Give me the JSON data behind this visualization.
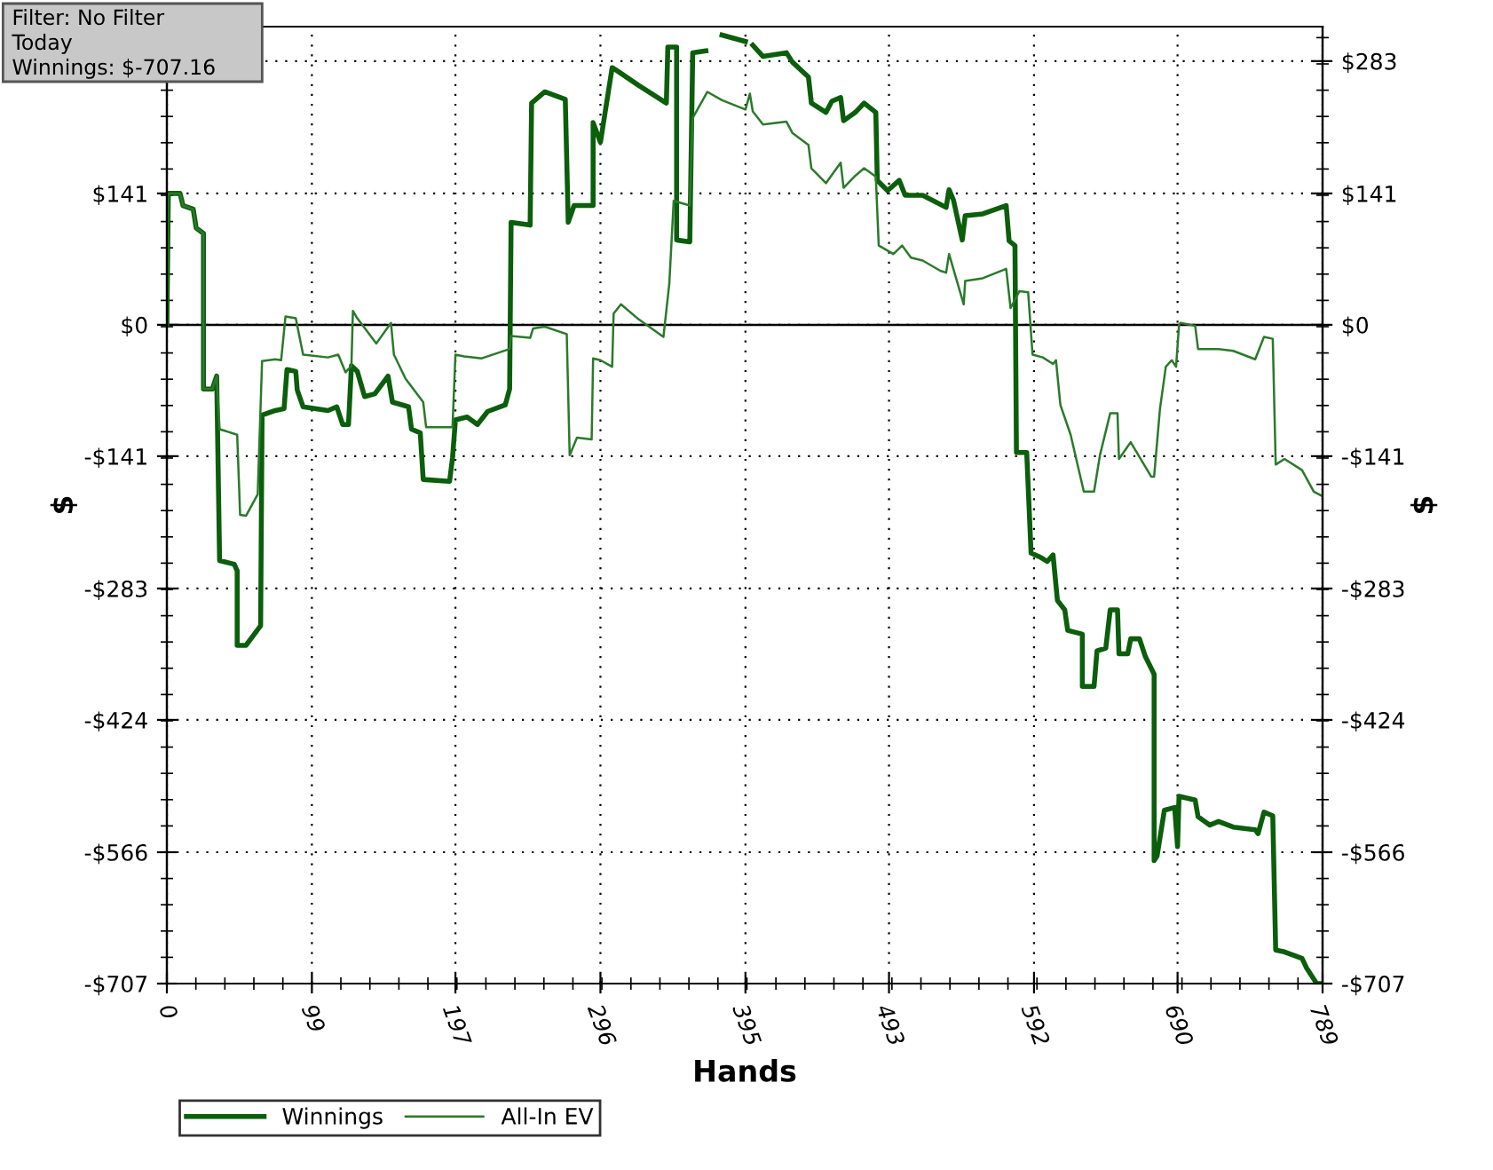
{
  "chart_data": {
    "type": "line",
    "xlabel": "Hands",
    "ylabel": "$",
    "y2label": "$",
    "annotations": [
      "Filter: No Filter",
      "Today",
      "Winnings: $-707.16"
    ],
    "xlim": [
      0,
      789
    ],
    "xticks": [
      0,
      99,
      197,
      296,
      395,
      493,
      592,
      690,
      789
    ],
    "ylim": [
      -707,
      320
    ],
    "yticks": [
      {
        "value": -707,
        "label": "-$707"
      },
      {
        "value": -566,
        "label": "-$566"
      },
      {
        "value": -424,
        "label": "-$424"
      },
      {
        "value": -283,
        "label": "-$283"
      },
      {
        "value": -141,
        "label": "-$141"
      },
      {
        "value": 0,
        "label": "$0"
      },
      {
        "value": 141,
        "label": "$141"
      },
      {
        "value": 283,
        "label": null
      }
    ],
    "y2lim": [
      -707,
      320
    ],
    "y2ticks": [
      {
        "value": -707,
        "label": "-$707"
      },
      {
        "value": -566,
        "label": "-$566"
      },
      {
        "value": -424,
        "label": "-$424"
      },
      {
        "value": -283,
        "label": "-$283"
      },
      {
        "value": -141,
        "label": "-$141"
      },
      {
        "value": 0,
        "label": "$0"
      },
      {
        "value": 141,
        "label": "$141"
      },
      {
        "value": 283,
        "label": "$283"
      }
    ],
    "ref_lines": [
      {
        "axis": "y",
        "value": 0,
        "label": null,
        "color": "#000000",
        "line_style": "solid"
      }
    ],
    "grid": true,
    "legend": "bottom left",
    "marker": "none",
    "line_style": "solid",
    "series": [
      {
        "name": "Winnings",
        "color": "#0b5e0b",
        "x": [
          0,
          1,
          9,
          11,
          18,
          20,
          25,
          25,
          31,
          34,
          36,
          46,
          48,
          48,
          54,
          64,
          65,
          74,
          80,
          82,
          88,
          89,
          93,
          110,
          116,
          120,
          124,
          126,
          130,
          135,
          142,
          151,
          154,
          165,
          167,
          173,
          175,
          193,
          195,
          197,
          205,
          212,
          219,
          231,
          234,
          235,
          248,
          249,
          258,
          272,
          274,
          278,
          291,
          291,
          296,
          304,
          308,
          322,
          341,
          342,
          348,
          348,
          357,
          359,
          368,
          369,
          379,
          395,
          398,
          400,
          407,
          423,
          427,
          438,
          440,
          450,
          454,
          460,
          462,
          470,
          476,
          484,
          485,
          492,
          500,
          504,
          516,
          532,
          534,
          537,
          543,
          545,
          557,
          573,
          575,
          579,
          580,
          587,
          590,
          597,
          601,
          605,
          608,
          613,
          615,
          625,
          625,
          633,
          635,
          641,
          644,
          649,
          650,
          656,
          658,
          664,
          668,
          674,
          674,
          676,
          681,
          688,
          690,
          691,
          702,
          704,
          712,
          718,
          728,
          743,
          745,
          749,
          755,
          757,
          763,
          775,
          778,
          785,
          789
        ],
        "values": [
          0,
          141,
          141,
          128,
          124,
          104,
          98,
          -69,
          -69,
          -55,
          -253,
          -257,
          -264,
          -344,
          -344,
          -323,
          -97,
          -92,
          -90,
          -48,
          -50,
          -70,
          -88,
          -92,
          -88,
          -107,
          -107,
          -44,
          -50,
          -77,
          -74,
          -55,
          -83,
          -88,
          -112,
          -116,
          -166,
          -168,
          -143,
          -102,
          -99,
          -107,
          -93,
          -86,
          -69,
          110,
          107,
          238,
          250,
          242,
          110,
          128,
          128,
          217,
          196,
          276,
          272,
          257,
          238,
          298,
          298,
          91,
          89,
          292,
          294,
          null,
          311,
          304,
          null,
          300,
          288,
          292,
          282,
          266,
          238,
          228,
          240,
          244,
          219,
          228,
          238,
          228,
          155,
          144,
          155,
          139,
          139,
          126,
          145,
          134,
          91,
          117,
          119,
          128,
          90,
          85,
          -137,
          -137,
          -245,
          -250,
          -254,
          -247,
          -296,
          -306,
          -328,
          -332,
          -388,
          -388,
          -350,
          -347,
          -306,
          -306,
          -353,
          -353,
          -337,
          -337,
          -356,
          -375,
          -575,
          -570,
          -521,
          -518,
          -560,
          -506,
          -510,
          -528,
          -537,
          -533,
          -539,
          -542,
          -546,
          -523,
          -527,
          -671,
          -673,
          -680,
          -690,
          -707,
          -707
        ]
      },
      {
        "name": "All-In EV",
        "color": "#2a7a2a",
        "x": [
          0,
          1,
          9,
          11,
          18,
          20,
          25,
          25,
          31,
          34,
          36,
          48,
          50,
          54,
          62,
          65,
          74,
          78,
          81,
          88,
          93,
          110,
          117,
          122,
          126,
          127,
          130,
          143,
          153,
          155,
          163,
          175,
          177,
          195,
          197,
          203,
          215,
          234,
          235,
          248,
          250,
          258,
          273,
          275,
          280,
          290,
          291,
          296,
          304,
          305,
          310,
          322,
          339,
          343,
          346,
          357,
          359,
          369,
          379,
          395,
          398,
          400,
          407,
          423,
          427,
          438,
          440,
          450,
          460,
          462,
          470,
          476,
          484,
          486,
          496,
          502,
          508,
          516,
          528,
          532,
          534,
          544,
          545,
          557,
          573,
          576,
          582,
          588,
          591,
          598,
          605,
          607,
          610,
          617,
          626,
          633,
          637,
          644,
          649,
          650,
          658,
          672,
          674,
          678,
          682,
          686,
          689,
          691,
          692,
          702,
          704,
          718,
          728,
          743,
          749,
          755,
          757,
          763,
          775,
          783,
          789
        ],
        "values": [
          0,
          141,
          141,
          128,
          124,
          104,
          98,
          -69,
          -69,
          -55,
          -112,
          -118,
          -204,
          -205,
          -182,
          -39,
          -37,
          -38,
          9,
          7,
          -32,
          -35,
          -32,
          -51,
          -44,
          15,
          7,
          -20,
          2,
          -32,
          -58,
          -83,
          -110,
          -110,
          -32,
          -34,
          -36,
          -26,
          -12,
          -14,
          -4,
          -2,
          -10,
          -140,
          -121,
          -123,
          -36,
          -38,
          -45,
          12,
          22,
          6,
          -13,
          44,
          133,
          128,
          222,
          250,
          241,
          231,
          248,
          229,
          215,
          218,
          206,
          193,
          168,
          152,
          174,
          147,
          160,
          168,
          159,
          85,
          76,
          85,
          72,
          69,
          58,
          56,
          76,
          22,
          47,
          50,
          60,
          18,
          36,
          35,
          -32,
          -35,
          -42,
          -38,
          -86,
          -118,
          -179,
          -179,
          -140,
          -95,
          -95,
          -144,
          -126,
          -163,
          -163,
          -90,
          -45,
          -38,
          -45,
          0,
          2,
          -1,
          -26,
          -26,
          -28,
          -37,
          -13,
          -15,
          -150,
          -144,
          -156,
          -179,
          -184
        ]
      }
    ]
  }
}
